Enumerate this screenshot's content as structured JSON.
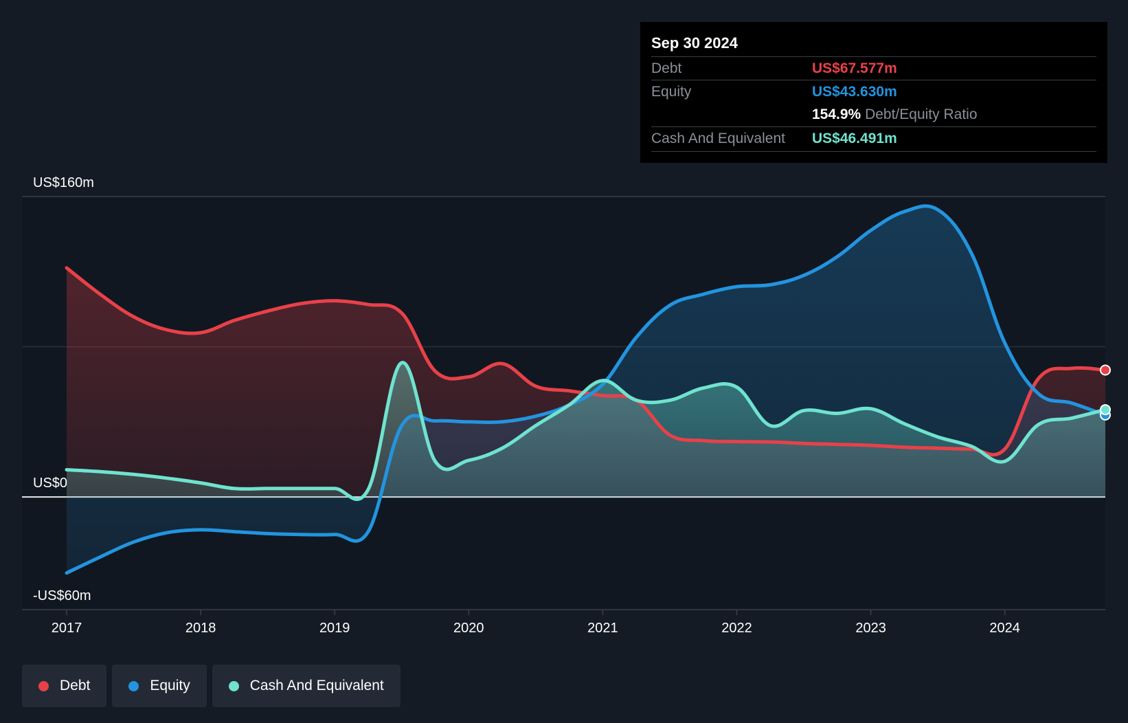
{
  "tooltip": {
    "date": "Sep 30 2024",
    "debt_label": "Debt",
    "debt_value": "US$67.577m",
    "equity_label": "Equity",
    "equity_value": "US$43.630m",
    "ratio_value": "154.9%",
    "ratio_label": "Debt/Equity Ratio",
    "cash_label": "Cash And Equivalent",
    "cash_value": "US$46.491m"
  },
  "legend": [
    {
      "label": "Debt",
      "color": "#e84149"
    },
    {
      "label": "Equity",
      "color": "#2394df"
    },
    {
      "label": "Cash And Equivalent",
      "color": "#6fe3cf"
    }
  ],
  "chart_data": {
    "type": "area",
    "y_tick_labels": [
      "US$160m",
      "US$0",
      "-US$60m"
    ],
    "ylim": [
      -60,
      160
    ],
    "xlim": [
      2017,
      2024.75
    ],
    "x_ticks": [
      2017,
      2018,
      2019,
      2020,
      2021,
      2022,
      2023,
      2024
    ],
    "x_tick_labels": [
      "2017",
      "2018",
      "2019",
      "2020",
      "2021",
      "2022",
      "2023",
      "2024"
    ],
    "grid": true,
    "legend_position": "bottom-left",
    "series": [
      {
        "name": "Debt",
        "color": "#e84149",
        "points": [
          [
            2017,
            122
          ],
          [
            2017.25,
            108
          ],
          [
            2017.5,
            96
          ],
          [
            2017.75,
            89
          ],
          [
            2018,
            87.5
          ],
          [
            2018.25,
            94
          ],
          [
            2018.5,
            99
          ],
          [
            2018.75,
            103
          ],
          [
            2019,
            104.5
          ],
          [
            2019.25,
            102.5
          ],
          [
            2019.5,
            98
          ],
          [
            2019.75,
            67
          ],
          [
            2020,
            64
          ],
          [
            2020.25,
            71
          ],
          [
            2020.5,
            59
          ],
          [
            2020.75,
            56.5
          ],
          [
            2021,
            54
          ],
          [
            2021.25,
            51.5
          ],
          [
            2021.5,
            33
          ],
          [
            2021.75,
            30
          ],
          [
            2022,
            29.5
          ],
          [
            2022.25,
            29.3
          ],
          [
            2022.5,
            28.5
          ],
          [
            2022.75,
            28
          ],
          [
            2023,
            27.5
          ],
          [
            2023.25,
            26.5
          ],
          [
            2023.5,
            26
          ],
          [
            2023.75,
            25.5
          ],
          [
            2024,
            25.5
          ],
          [
            2024.25,
            63
          ],
          [
            2024.5,
            68.5
          ],
          [
            2024.75,
            67.577
          ]
        ]
      },
      {
        "name": "Equity",
        "color": "#2394df",
        "points": [
          [
            2017,
            -40.5
          ],
          [
            2017.25,
            -32
          ],
          [
            2017.5,
            -24
          ],
          [
            2017.75,
            -19
          ],
          [
            2018,
            -17.5
          ],
          [
            2018.25,
            -18.5
          ],
          [
            2018.5,
            -19.5
          ],
          [
            2018.75,
            -20
          ],
          [
            2019,
            -20
          ],
          [
            2019.25,
            -18.5
          ],
          [
            2019.5,
            38
          ],
          [
            2019.75,
            40.5
          ],
          [
            2020,
            40
          ],
          [
            2020.25,
            40
          ],
          [
            2020.5,
            43
          ],
          [
            2020.75,
            49
          ],
          [
            2021,
            60
          ],
          [
            2021.25,
            85
          ],
          [
            2021.5,
            102
          ],
          [
            2021.75,
            108
          ],
          [
            2022,
            112
          ],
          [
            2022.25,
            113
          ],
          [
            2022.5,
            118
          ],
          [
            2022.75,
            128
          ],
          [
            2023,
            142
          ],
          [
            2023.25,
            152
          ],
          [
            2023.5,
            153
          ],
          [
            2023.75,
            130
          ],
          [
            2024,
            82
          ],
          [
            2024.25,
            55
          ],
          [
            2024.5,
            50
          ],
          [
            2024.75,
            43.63
          ]
        ]
      },
      {
        "name": "Cash And Equivalent",
        "color": "#6fe3cf",
        "points": [
          [
            2017,
            14.5
          ],
          [
            2017.25,
            13.5
          ],
          [
            2017.5,
            12
          ],
          [
            2017.75,
            10
          ],
          [
            2018,
            7.5
          ],
          [
            2018.25,
            4.5
          ],
          [
            2018.5,
            4.5
          ],
          [
            2018.75,
            4.5
          ],
          [
            2019,
            4.5
          ],
          [
            2019.25,
            4
          ],
          [
            2019.5,
            71.5
          ],
          [
            2019.75,
            19
          ],
          [
            2020,
            19.5
          ],
          [
            2020.25,
            26
          ],
          [
            2020.5,
            38
          ],
          [
            2020.75,
            49
          ],
          [
            2021,
            62
          ],
          [
            2021.25,
            51.5
          ],
          [
            2021.5,
            51.5
          ],
          [
            2021.75,
            58
          ],
          [
            2022,
            58.5
          ],
          [
            2022.25,
            38
          ],
          [
            2022.5,
            46
          ],
          [
            2022.75,
            44.5
          ],
          [
            2023,
            47
          ],
          [
            2023.25,
            39
          ],
          [
            2023.5,
            32
          ],
          [
            2023.75,
            27
          ],
          [
            2024,
            19
          ],
          [
            2024.25,
            38.5
          ],
          [
            2024.5,
            42
          ],
          [
            2024.75,
            46.491
          ]
        ]
      }
    ]
  }
}
